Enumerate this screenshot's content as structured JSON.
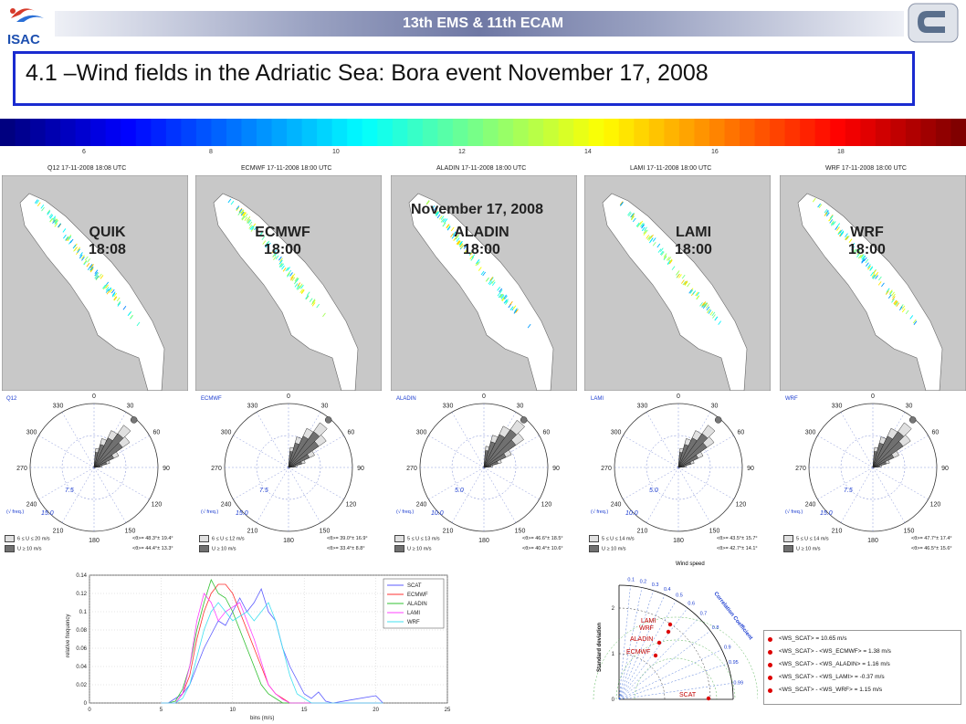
{
  "header": {
    "conference": "13th EMS & 11th ECAM",
    "logo_left": "ISAC",
    "title": "4.1 –Wind fields in the Adriatic Sea: Bora event November 17, 2008"
  },
  "colorbar": {
    "ticks": [
      "6",
      "8",
      "10",
      "12",
      "14",
      "16",
      "18"
    ]
  },
  "overlay_label": "November 17, 2008",
  "maps": [
    {
      "title": "Q12  17-11-2008 18:08 UTC",
      "label_line1": "QUIK",
      "label_line2": "18:08"
    },
    {
      "title": "ECMWF  17-11-2008 18:00 UTC",
      "label_line1": "ECMWF",
      "label_line2": "18:00"
    },
    {
      "title": "ALADIN  17-11-2008 18:00 UTC",
      "label_line1": "ALADIN",
      "label_line2": "18:00"
    },
    {
      "title": "LAMI  17-11-2008 18:00 UTC",
      "label_line1": "LAMI",
      "label_line2": "18:00"
    },
    {
      "title": "WRF  17-11-2008 18:00 UTC",
      "label_line1": "WRF",
      "label_line2": "18:00"
    }
  ],
  "roses": [
    {
      "name": "Q12",
      "r_inner": "7.5",
      "r_outer": "15.0",
      "leg1": "6 ≤ U ≤ 20 m/s",
      "leg2": "U ≥ 10 m/s",
      "stat1": "<θ>= 48.3°± 19.4°",
      "stat2": "<θ>= 44.4°± 13.3°"
    },
    {
      "name": "ECMWF",
      "r_inner": "7.5",
      "r_outer": "15.0",
      "leg1": "6 ≤ U ≤ 12 m/s",
      "leg2": "U ≥ 10 m/s",
      "stat1": "<θ>= 39.0°± 16.9°",
      "stat2": "<θ>= 33.4°± 8.8°"
    },
    {
      "name": "ALADIN",
      "r_inner": "5.0",
      "r_outer": "10.0",
      "leg1": "5 ≤ U ≤ 13 m/s",
      "leg2": "U ≥ 10 m/s",
      "stat1": "<θ>= 46.6°± 18.5°",
      "stat2": "<θ>= 40.4°± 10.6°"
    },
    {
      "name": "LAMI",
      "r_inner": "5.0",
      "r_outer": "10.0",
      "leg1": "5 ≤ U ≤ 14 m/s",
      "leg2": "U ≥ 10 m/s",
      "stat1": "<θ>= 43.5°± 15.7°",
      "stat2": "<θ>= 42.7°± 14.1°"
    },
    {
      "name": "WRF",
      "r_inner": "7.5",
      "r_outer": "15.0",
      "leg1": "5 ≤ U ≤ 14 m/s",
      "leg2": "U ≥ 10 m/s",
      "stat1": "<θ>= 47.7°± 17.4°",
      "stat2": "<θ>= 46.5°± 15.6°"
    }
  ],
  "rose_angles": [
    "0",
    "30",
    "60",
    "90",
    "120",
    "150",
    "180",
    "210",
    "240",
    "270",
    "300",
    "330"
  ],
  "rose_freq_label": "(√ freq.)",
  "chart_data": {
    "type": "line",
    "xlabel": "bins (m/s)",
    "ylabel": "relative frequency",
    "xlim": [
      0,
      25
    ],
    "ylim": [
      0,
      0.14
    ],
    "xticks": [
      "0",
      "5",
      "10",
      "15",
      "20",
      "25"
    ],
    "yticks": [
      "0",
      "0.02",
      "0.04",
      "0.06",
      "0.08",
      "0.1",
      "0.12",
      "0.14"
    ],
    "grid": true,
    "legend_position": "top-right",
    "x": [
      5,
      5.5,
      6,
      6.5,
      7,
      7.5,
      8,
      8.5,
      9,
      9.5,
      10,
      10.5,
      11,
      11.5,
      12,
      12.5,
      13,
      13.5,
      14,
      14.5,
      15,
      15.5,
      16,
      16.5,
      17,
      20,
      20.5
    ],
    "series": [
      {
        "name": "SCAT",
        "color": "#5b5bff",
        "values": [
          0,
          0,
          0.005,
          0.01,
          0.02,
          0.04,
          0.06,
          0.075,
          0.09,
          0.085,
          0.1,
          0.115,
          0.1,
          0.11,
          0.125,
          0.1,
          0.09,
          0.06,
          0.04,
          0.025,
          0.01,
          0.005,
          0.012,
          0.002,
          0,
          0.008,
          0
        ]
      },
      {
        "name": "ECMWF",
        "color": "#ff3030",
        "values": [
          0,
          0,
          0,
          0.01,
          0.03,
          0.07,
          0.1,
          0.12,
          0.13,
          0.13,
          0.12,
          0.1,
          0.08,
          0.06,
          0.04,
          0.02,
          0.01,
          0.005,
          0,
          0,
          0,
          0,
          0,
          0,
          0,
          0,
          0
        ]
      },
      {
        "name": "ALADIN",
        "color": "#30c030",
        "values": [
          0,
          0,
          0.002,
          0.015,
          0.04,
          0.08,
          0.11,
          0.135,
          0.12,
          0.115,
          0.1,
          0.08,
          0.06,
          0.04,
          0.02,
          0.01,
          0.005,
          0,
          0,
          0,
          0,
          0,
          0,
          0,
          0,
          0,
          0
        ]
      },
      {
        "name": "LAMI",
        "color": "#ff40ff",
        "values": [
          0,
          0,
          0,
          0.01,
          0.04,
          0.09,
          0.12,
          0.11,
          0.09,
          0.1,
          0.105,
          0.11,
          0.09,
          0.07,
          0.045,
          0.02,
          0.01,
          0.004,
          0,
          0,
          0,
          0,
          0,
          0,
          0,
          0,
          0
        ]
      },
      {
        "name": "WRF",
        "color": "#40e0f0",
        "values": [
          0,
          0,
          0,
          0.005,
          0.02,
          0.05,
          0.08,
          0.1,
          0.11,
          0.1,
          0.09,
          0.095,
          0.1,
          0.09,
          0.1,
          0.11,
          0.09,
          0.06,
          0.03,
          0.01,
          0.005,
          0,
          0,
          0,
          0,
          0,
          0
        ]
      }
    ]
  },
  "taylor": {
    "title": "Wind speed",
    "corr_label": "Correlation Coefficient",
    "std_label": "Standard deviation",
    "corr_ticks": [
      "0.1",
      "0.2",
      "0.3",
      "0.4",
      "0.5",
      "0.6",
      "0.7",
      "0.8",
      "0.9",
      "0.95",
      "0.99"
    ],
    "std_ticks": [
      "0",
      "1",
      "2"
    ],
    "models": [
      "LAMI",
      "WRF",
      "ALADIN",
      "ECMWF",
      "SCAT"
    ],
    "legend": [
      "<WS_SCAT> = 10.65 m/s",
      "<WS_SCAT> - <WS_ECMWF> = 1.38 m/s",
      "<WS_SCAT> - <WS_ALADIN> = 1.16 m/s",
      "<WS_SCAT> - <WS_LAMI> = -0.37 m/s",
      "<WS_SCAT> - <WS_WRF> = 1.15 m/s"
    ]
  }
}
